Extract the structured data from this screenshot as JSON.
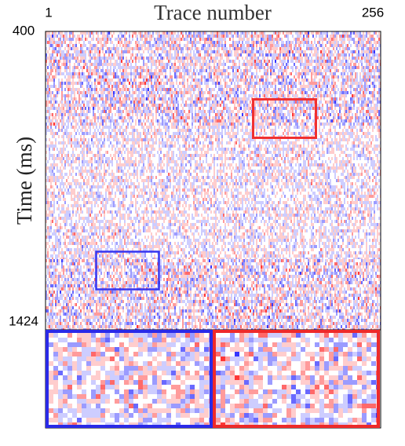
{
  "chart_data": {
    "type": "seismic-section",
    "title": "Trace number",
    "y_label": "Time (ms)",
    "xlim": [
      1,
      256
    ],
    "xticks": [
      1,
      256
    ],
    "ylim": [
      400,
      1424
    ],
    "yticks": [
      400,
      1424
    ]
  }
}
